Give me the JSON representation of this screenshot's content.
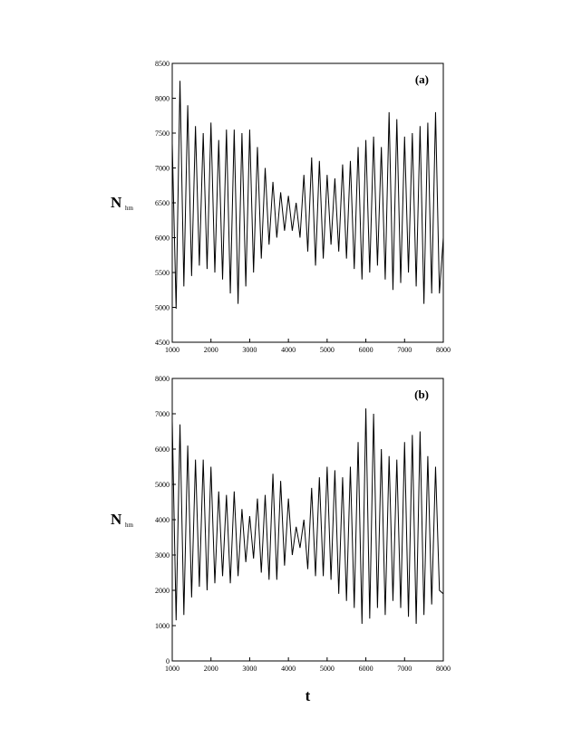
{
  "chart_data": [
    {
      "type": "line",
      "panel_label": "(a)",
      "ylabel": "N",
      "ylabel_subscript": "hm",
      "x": [
        1000,
        1100,
        1200,
        1300,
        1400,
        1500,
        1600,
        1700,
        1800,
        1900,
        2000,
        2100,
        2200,
        2300,
        2400,
        2500,
        2600,
        2700,
        2800,
        2900,
        3000,
        3100,
        3200,
        3300,
        3400,
        3500,
        3600,
        3700,
        3800,
        3900,
        4000,
        4100,
        4200,
        4300,
        4400,
        4500,
        4600,
        4700,
        4800,
        4900,
        5000,
        5100,
        5200,
        5300,
        5400,
        5500,
        5600,
        5700,
        5800,
        5900,
        6000,
        6100,
        6200,
        6300,
        6400,
        6500,
        6600,
        6700,
        6800,
        6900,
        7000,
        7100,
        7200,
        7300,
        7400,
        7500,
        7600,
        7700,
        7800,
        7900,
        8000
      ],
      "series": [
        {
          "color": "#000000",
          "values": [
            7350,
            4980,
            8250,
            5300,
            7900,
            5450,
            7600,
            5600,
            7500,
            5550,
            7650,
            5500,
            7400,
            5400,
            7550,
            5200,
            7550,
            5050,
            7500,
            5300,
            7550,
            5500,
            7300,
            5700,
            7000,
            5900,
            6800,
            6000,
            6650,
            6100,
            6600,
            6100,
            6500,
            6000,
            6900,
            5800,
            7150,
            5600,
            7100,
            5700,
            6900,
            5900,
            6850,
            5800,
            7050,
            5700,
            7100,
            5550,
            7300,
            5400,
            7400,
            5500,
            7450,
            5600,
            7300,
            5400,
            7800,
            5250,
            7700,
            5350,
            7450,
            5500,
            7500,
            5300,
            7600,
            5050,
            7650,
            5200,
            7800,
            5200,
            6000
          ]
        }
      ],
      "xlim": [
        1000,
        8000
      ],
      "xticks": [
        1000,
        2000,
        3000,
        4000,
        5000,
        6000,
        7000,
        8000
      ],
      "ylim": [
        4500,
        8500
      ],
      "yticks": [
        4500,
        5000,
        5500,
        6000,
        6500,
        7000,
        7500,
        8000,
        8500
      ]
    },
    {
      "type": "line",
      "panel_label": "(b)",
      "ylabel": "N",
      "ylabel_subscript": "hm",
      "xlabel": "t",
      "x": [
        1000,
        1100,
        1200,
        1300,
        1400,
        1500,
        1600,
        1700,
        1800,
        1900,
        2000,
        2100,
        2200,
        2300,
        2400,
        2500,
        2600,
        2700,
        2800,
        2900,
        3000,
        3100,
        3200,
        3300,
        3400,
        3500,
        3600,
        3700,
        3800,
        3900,
        4000,
        4100,
        4200,
        4300,
        4400,
        4500,
        4600,
        4700,
        4800,
        4900,
        5000,
        5100,
        5200,
        5300,
        5400,
        5500,
        5600,
        5700,
        5800,
        5900,
        6000,
        6100,
        6200,
        6300,
        6400,
        6500,
        6600,
        6700,
        6800,
        6900,
        7000,
        7100,
        7200,
        7300,
        7400,
        7500,
        7600,
        7700,
        7800,
        7900,
        8000
      ],
      "series": [
        {
          "color": "#000000",
          "values": [
            6800,
            1150,
            6700,
            1300,
            6100,
            1800,
            5700,
            2100,
            5700,
            2000,
            5500,
            2200,
            4800,
            2400,
            4700,
            2200,
            4800,
            2400,
            4300,
            2800,
            4100,
            2900,
            4600,
            2500,
            4700,
            2300,
            5300,
            2300,
            5100,
            2700,
            4600,
            3000,
            3800,
            3200,
            4000,
            2600,
            4900,
            2400,
            5200,
            2400,
            5500,
            2300,
            5400,
            1900,
            5200,
            1700,
            5500,
            1500,
            6200,
            1050,
            7150,
            1200,
            7000,
            1500,
            6000,
            1300,
            5800,
            1700,
            5700,
            1500,
            6200,
            1250,
            6400,
            1050,
            6500,
            1300,
            5800,
            1600,
            5500,
            2000,
            1900
          ]
        }
      ],
      "xlim": [
        1000,
        8000
      ],
      "xticks": [
        1000,
        2000,
        3000,
        4000,
        5000,
        6000,
        7000,
        8000
      ],
      "ylim": [
        0,
        8000
      ],
      "yticks": [
        0,
        1000,
        2000,
        3000,
        4000,
        5000,
        6000,
        7000,
        8000
      ]
    }
  ]
}
